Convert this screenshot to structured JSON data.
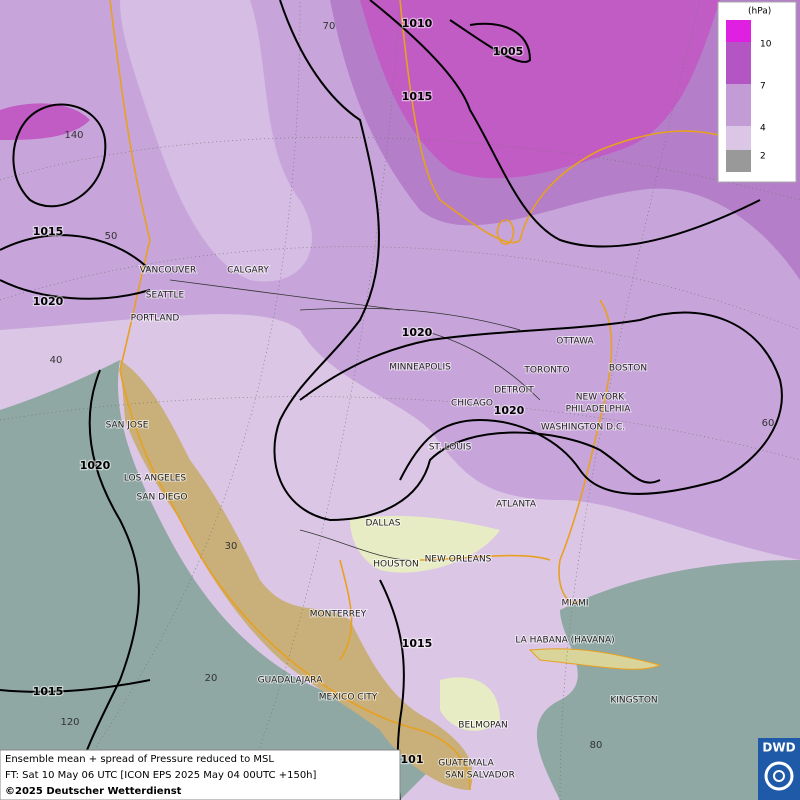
{
  "map": {
    "cities": [
      "VANCOUVER",
      "CALGARY",
      "SEATTLE",
      "PORTLAND",
      "MINNEAPOLIS",
      "OTTAWA",
      "TORONTO",
      "BOSTON",
      "DETROIT",
      "CHICAGO",
      "NEW YORK",
      "PHILADELPHIA",
      "WASHINGTON D.C.",
      "ST. LOUIS",
      "SAN JOSE",
      "LOS ANGELES",
      "SAN DIEGO",
      "ATLANTA",
      "DALLAS",
      "HOUSTON",
      "NEW ORLEANS",
      "MIAMI",
      "MONTERREY",
      "LA HABANA (HAVANA)",
      "GUADALAJARA",
      "MEXICO CITY",
      "KINGSTON",
      "BELMOPAN",
      "GUATEMALA",
      "SAN SALVADOR"
    ],
    "isobar_labels": [
      "1010",
      "1005",
      "1015",
      "1015",
      "1020",
      "1020",
      "1020",
      "1020",
      "1015",
      "1015",
      "101"
    ],
    "graticule_labels": [
      "70",
      "140",
      "50",
      "40",
      "60",
      "30",
      "20",
      "120",
      "80"
    ]
  },
  "legend": {
    "unit": "(hPa)",
    "levels": [
      10,
      7,
      4,
      2
    ]
  },
  "footer": {
    "lines": [
      "Ensemble mean + spread of Pressure reduced to MSL",
      "FT: Sat 10 May 06 UTC [ICON EPS 2025 May 04 00UTC +150h]",
      "©2025 Deutscher Wetterdienst"
    ]
  },
  "logo": "DWD"
}
